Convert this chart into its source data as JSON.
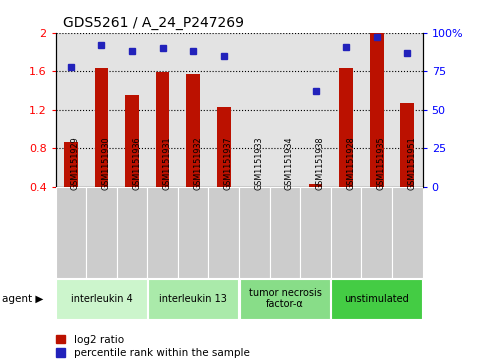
{
  "title": "GDS5261 / A_24_P247269",
  "samples": [
    "GSM1151929",
    "GSM1151930",
    "GSM1151936",
    "GSM1151931",
    "GSM1151932",
    "GSM1151937",
    "GSM1151933",
    "GSM1151934",
    "GSM1151938",
    "GSM1151928",
    "GSM1151935",
    "GSM1151951"
  ],
  "log2_ratio": [
    0.87,
    1.63,
    1.35,
    1.59,
    1.57,
    1.23,
    0.4,
    0.4,
    0.43,
    1.63,
    2.0,
    1.27
  ],
  "percentile_rank": [
    78,
    92,
    88,
    90,
    88,
    85,
    -1,
    -1,
    62,
    91,
    97,
    87
  ],
  "bar_color": "#bb1100",
  "dot_color": "#2222bb",
  "ylim_left": [
    0.4,
    2.0
  ],
  "ylim_right": [
    0,
    100
  ],
  "yticks_left": [
    0.4,
    0.8,
    1.2,
    1.6,
    2.0
  ],
  "ytick_labels_left": [
    "0.4",
    "0.8",
    "1.2",
    "1.6",
    "2"
  ],
  "yticks_right": [
    0,
    25,
    50,
    75,
    100
  ],
  "ytick_labels_right": [
    "0",
    "25",
    "50",
    "75",
    "100%"
  ],
  "groups": [
    {
      "label": "interleukin 4",
      "span": [
        0,
        2
      ],
      "color": "#ccf5cc"
    },
    {
      "label": "interleukin 13",
      "span": [
        3,
        5
      ],
      "color": "#aaeaaa"
    },
    {
      "label": "tumor necrosis\nfactor-α",
      "span": [
        6,
        8
      ],
      "color": "#88dd88"
    },
    {
      "label": "unstimulated",
      "span": [
        9,
        11
      ],
      "color": "#44cc44"
    }
  ],
  "col_bg": "#cccccc",
  "legend_red": "log2 ratio",
  "legend_blue": "percentile rank within the sample",
  "bar_width": 0.45
}
